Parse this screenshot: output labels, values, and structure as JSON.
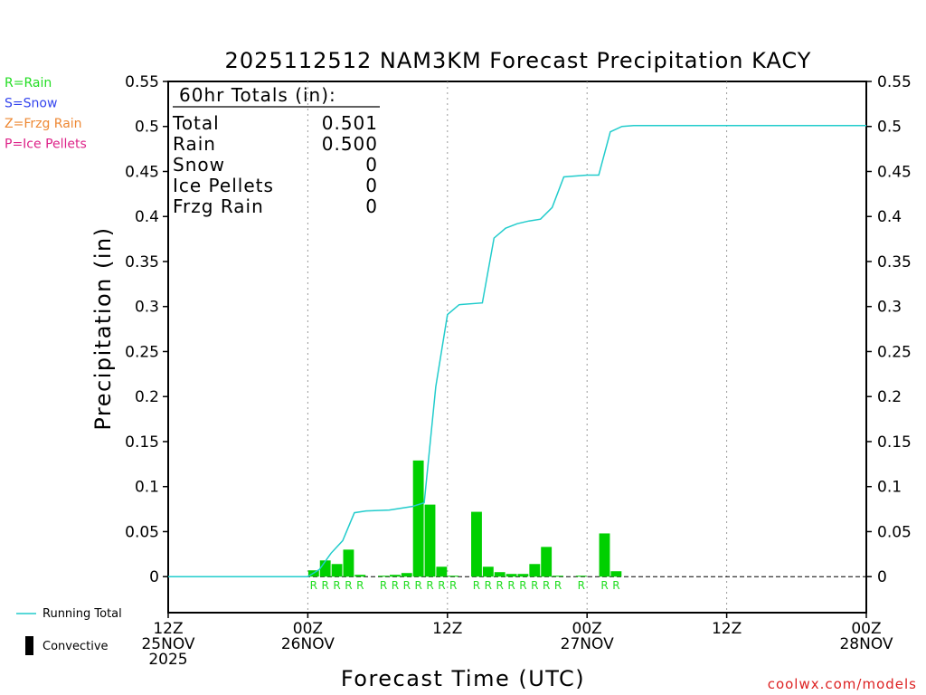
{
  "chart_data": {
    "type": "bar",
    "title": "2025112512 NAM3KM Forecast Precipitation KACY",
    "xlabel": "Forecast Time (UTC)",
    "ylabel": "Precipitation (in)",
    "ylim": [
      -0.04,
      0.55
    ],
    "y_ticks": [
      "0.55",
      "0.5",
      "0.45",
      "0.4",
      "0.35",
      "0.3",
      "0.25",
      "0.2",
      "0.15",
      "0.1",
      "0.05",
      "0"
    ],
    "x_unit": "forecast hour",
    "xlim": [
      0,
      60
    ],
    "x_ticks": [
      {
        "hour": 0,
        "line1": "12Z",
        "line2": "25NOV",
        "line3": "2025"
      },
      {
        "hour": 12,
        "line1": "00Z",
        "line2": "26NOV",
        "line3": ""
      },
      {
        "hour": 24,
        "line1": "12Z",
        "line2": "",
        "line3": ""
      },
      {
        "hour": 36,
        "line1": "00Z",
        "line2": "27NOV",
        "line3": ""
      },
      {
        "hour": 48,
        "line1": "12Z",
        "line2": "",
        "line3": ""
      },
      {
        "hour": 60,
        "line1": "00Z",
        "line2": "28NOV",
        "line3": ""
      }
    ],
    "type_legend": [
      {
        "label": "R=Rain",
        "color": "#22dd22"
      },
      {
        "label": "S=Snow",
        "color": "#3344ee"
      },
      {
        "label": "Z=Frzg Rain",
        "color": "#ee8833"
      },
      {
        "label": "P=Ice Pellets",
        "color": "#dd2288"
      }
    ],
    "series": [
      {
        "name": "Hourly Precipitation",
        "color": "#00d000",
        "hours": [
          13,
          14,
          15,
          16,
          17,
          19,
          20,
          21,
          22,
          23,
          24,
          25,
          27,
          28,
          29,
          30,
          31,
          32,
          33,
          34,
          36,
          38,
          39
        ],
        "values": [
          0.007,
          0.018,
          0.014,
          0.03,
          0.002,
          0.001,
          0.002,
          0.004,
          0.129,
          0.08,
          0.011,
          0.001,
          0.072,
          0.011,
          0.005,
          0.003,
          0.003,
          0.014,
          0.033,
          0.001,
          0.001,
          0.048,
          0.006
        ],
        "type_codes": [
          "R",
          "R",
          "R",
          "R",
          "R",
          "R",
          "R",
          "R",
          "R",
          "R",
          "R",
          "R",
          "R",
          "R",
          "R",
          "R",
          "R",
          "R",
          "R",
          "R",
          "R",
          "R",
          "R"
        ]
      },
      {
        "name": "Running Total",
        "color": "#22cccc",
        "hours": [
          0,
          12,
          13,
          14,
          15,
          16,
          17,
          19,
          20,
          21,
          22,
          23,
          24,
          25,
          27,
          28,
          29,
          30,
          31,
          32,
          33,
          34,
          35,
          36,
          37,
          38,
          39,
          40,
          60
        ],
        "values": [
          0,
          0,
          0.008,
          0.026,
          0.04,
          0.071,
          0.073,
          0.074,
          0.076,
          0.078,
          0.082,
          0.211,
          0.291,
          0.302,
          0.304,
          0.376,
          0.387,
          0.392,
          0.395,
          0.397,
          0.41,
          0.444,
          0.445,
          0.446,
          0.446,
          0.494,
          0.5,
          0.501,
          0.501
        ]
      }
    ],
    "totals_box": {
      "heading": "60hr Totals (in):",
      "rows": [
        {
          "label": "Total",
          "value": "0.501"
        },
        {
          "label": "Rain",
          "value": "0.500"
        },
        {
          "label": "Snow",
          "value": "0"
        },
        {
          "label": "Ice Pellets",
          "value": "0"
        },
        {
          "label": "Frzg Rain",
          "value": "0"
        }
      ]
    },
    "bottom_legend": [
      {
        "label": "Running Total",
        "color": "#22cccc",
        "kind": "line"
      },
      {
        "label": "Convective",
        "color": "#000000",
        "kind": "bar"
      }
    ],
    "credit": "coolwx.com/models"
  }
}
